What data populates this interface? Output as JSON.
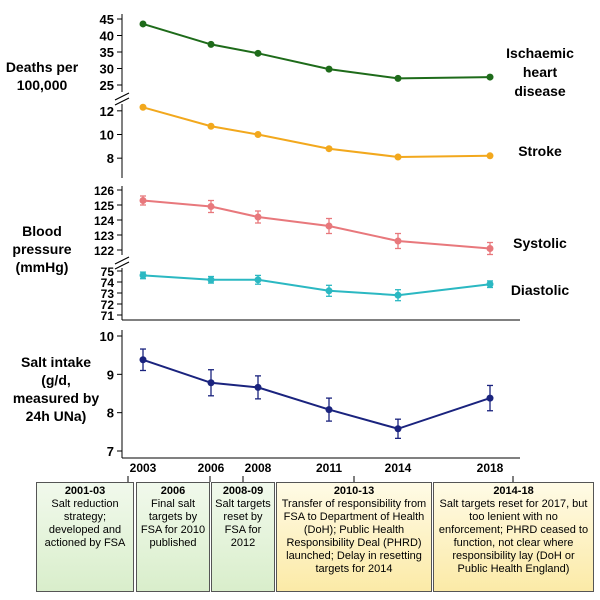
{
  "chart_data": [
    {
      "type": "line",
      "ylabel": "Deaths per 100,000",
      "x": [
        "2003",
        "2006",
        "2008",
        "2011",
        "2014",
        "2018"
      ],
      "series": [
        {
          "name": "Ischaemic heart disease",
          "values": [
            43.5,
            37.3,
            34.6,
            29.8,
            27.0,
            27.4
          ],
          "color": "#1e6b1a"
        },
        {
          "name": "Stroke",
          "values": [
            12.3,
            10.7,
            10.0,
            8.8,
            8.1,
            8.2
          ],
          "color": "#f2a81d"
        }
      ],
      "axis_upper": {
        "ylim": [
          25,
          45
        ],
        "ticks": [
          "45",
          "40",
          "35",
          "30",
          "25"
        ]
      },
      "axis_lower": {
        "ylim": [
          7,
          13
        ],
        "ticks": [
          "12",
          "10",
          "8"
        ]
      },
      "axis_break": true
    },
    {
      "type": "line",
      "ylabel": "Blood pressure (mmHg)",
      "x": [
        "2003",
        "2006",
        "2008",
        "2011",
        "2014",
        "2018"
      ],
      "series": [
        {
          "name": "Systolic",
          "values": [
            125.3,
            124.9,
            124.2,
            123.6,
            122.6,
            122.1
          ],
          "errors": [
            0.3,
            0.4,
            0.4,
            0.5,
            0.5,
            0.4
          ],
          "color": "#e8787c"
        },
        {
          "name": "Diastolic",
          "values": [
            74.6,
            74.2,
            74.2,
            73.2,
            72.8,
            73.8
          ],
          "errors": [
            0.3,
            0.3,
            0.4,
            0.5,
            0.5,
            0.3
          ],
          "color": "#2bb8c2"
        }
      ],
      "axis_upper": {
        "ylim": [
          121.7,
          126
        ],
        "ticks": [
          "126",
          "125",
          "124",
          "123",
          "122"
        ]
      },
      "axis_lower": {
        "ylim": [
          71,
          75
        ],
        "ticks": [
          "75",
          "74",
          "73",
          "72",
          "71"
        ]
      },
      "axis_break": true
    },
    {
      "type": "line",
      "ylabel": "Salt intake (g/d, measured by 24h UNa)",
      "x": [
        "2003",
        "2006",
        "2008",
        "2011",
        "2014",
        "2018"
      ],
      "series": [
        {
          "name": "",
          "values": [
            9.38,
            8.78,
            8.66,
            8.08,
            7.58,
            8.38
          ],
          "errors": [
            0.28,
            0.34,
            0.3,
            0.3,
            0.25,
            0.33
          ],
          "color": "#1a237e"
        }
      ],
      "ylim": [
        7,
        10
      ],
      "ticks": [
        "10",
        "9",
        "8",
        "7"
      ]
    }
  ],
  "timeline": [
    {
      "title": "2001-03",
      "text": "Salt reduction strategy; developed and actioned by FSA",
      "style": "green"
    },
    {
      "title": "2006",
      "text": "Final salt targets by FSA for 2010 published",
      "style": "green"
    },
    {
      "title": "2008-09",
      "text": "Salt targets reset by FSA for 2012",
      "style": "green"
    },
    {
      "title": "2010-13",
      "text": "Transfer of responsibility from FSA to Department of Health (DoH); Public Health Responsibility Deal (PHRD) launched; Delay in resetting targets for 2014",
      "style": "yellow"
    },
    {
      "title": "2014-18",
      "text": "Salt targets reset for 2017, but too lenient with no enforcement; PHRD ceased to function, not clear where responsibility lay (DoH or Public Health England)",
      "style": "yellow"
    }
  ]
}
